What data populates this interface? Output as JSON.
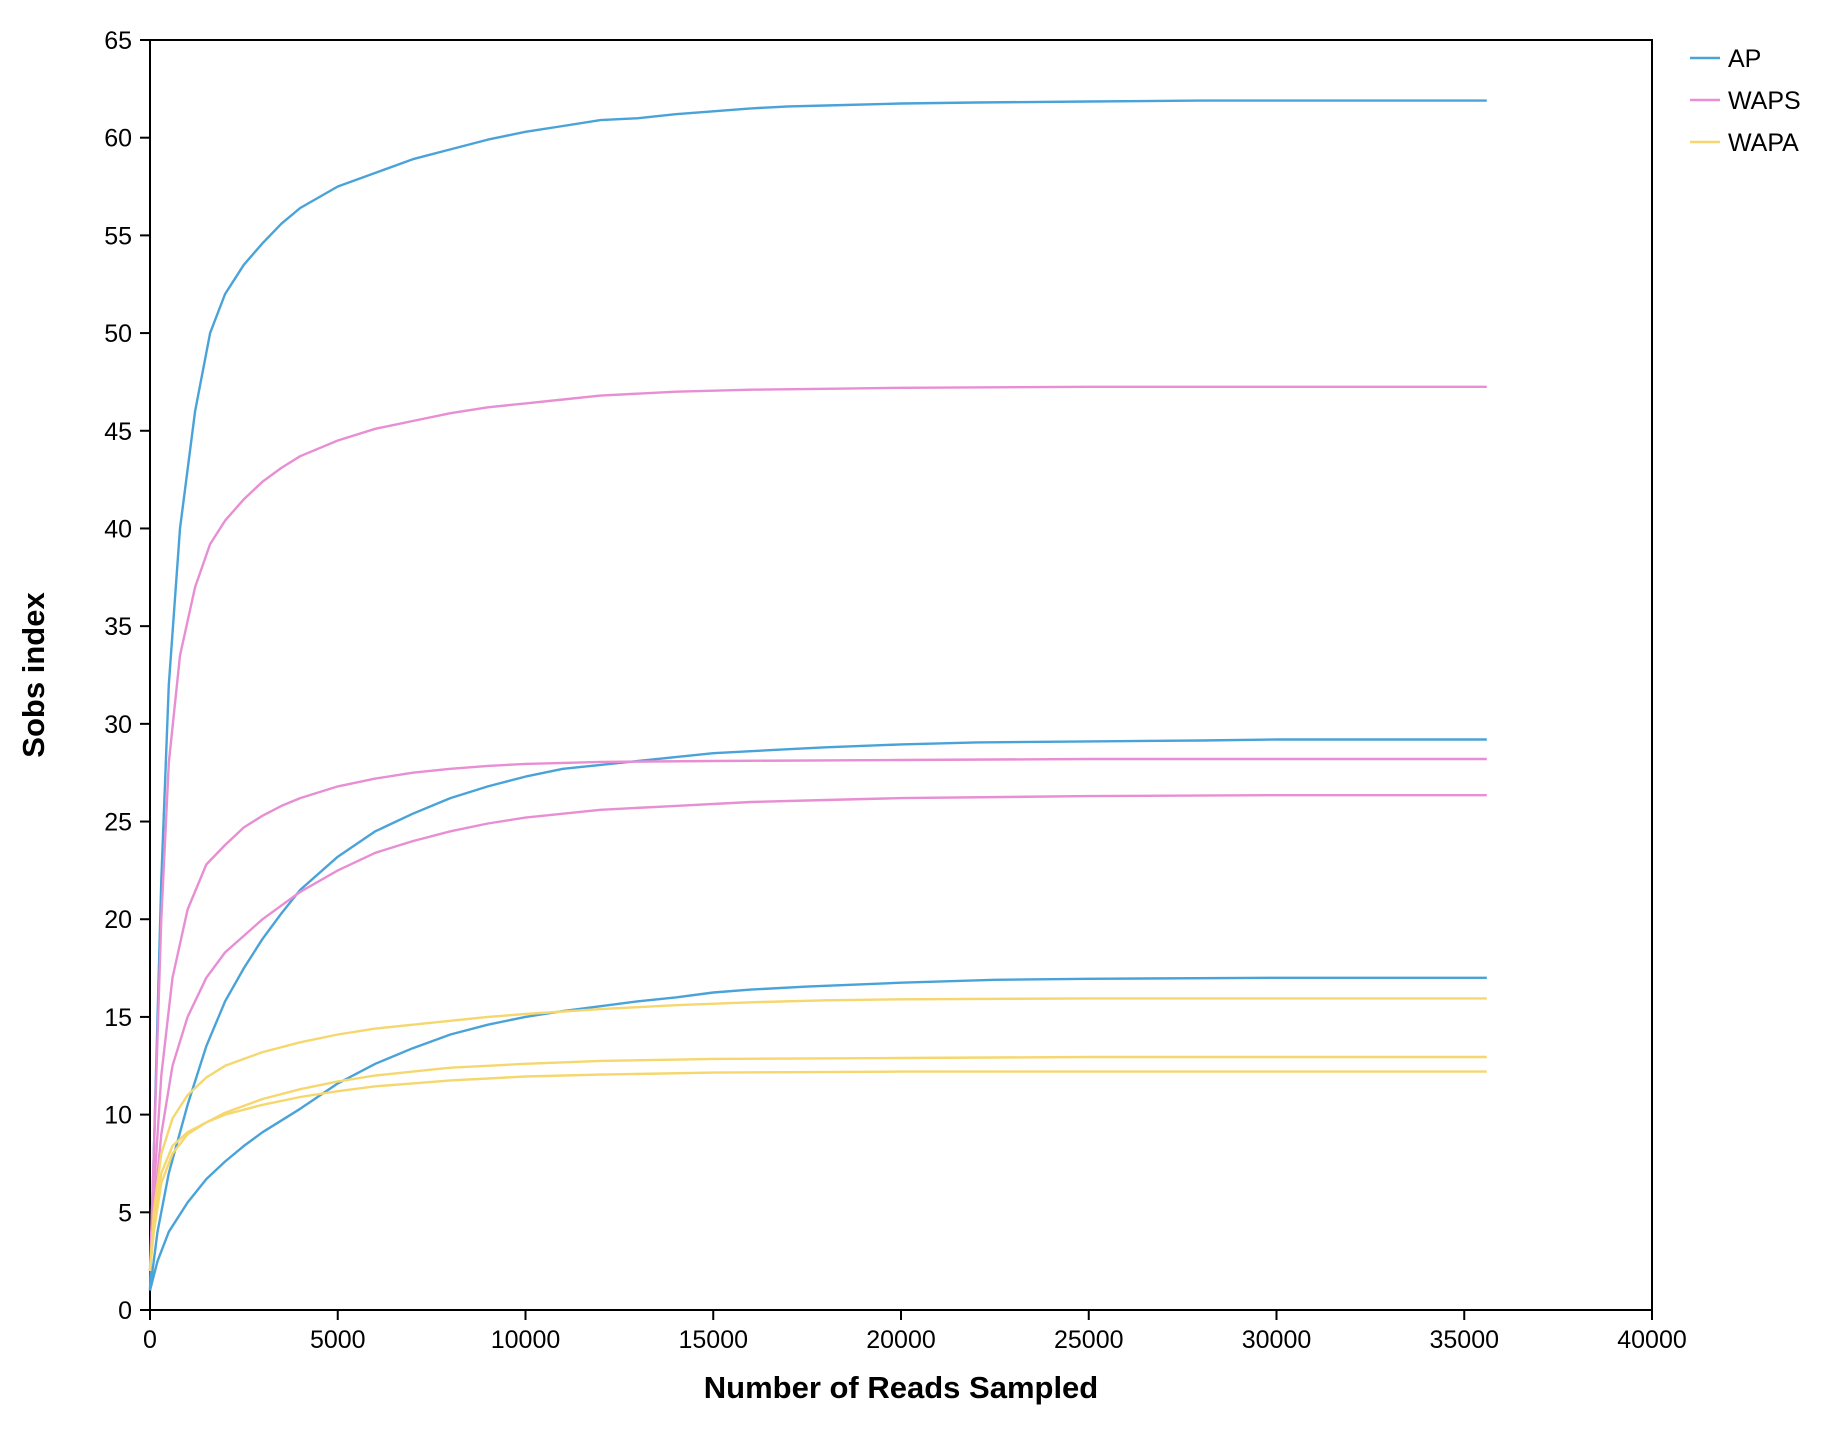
{
  "chart_data": {
    "type": "line",
    "title": "",
    "xlabel": "Number of Reads Sampled",
    "ylabel": "Sobs index",
    "xlim": [
      0,
      40000
    ],
    "ylim": [
      0,
      65
    ],
    "xticks": [
      0,
      5000,
      10000,
      15000,
      20000,
      25000,
      30000,
      35000,
      40000
    ],
    "yticks": [
      0,
      5,
      10,
      15,
      20,
      25,
      30,
      35,
      40,
      45,
      50,
      55,
      60,
      65
    ],
    "grid": false,
    "legend": {
      "position": "top-right",
      "entries": [
        {
          "label": "AP",
          "color": "#4aa3d8"
        },
        {
          "label": "WAPS",
          "color": "#e88ed3"
        },
        {
          "label": "WAPA",
          "color": "#f5d76e"
        }
      ]
    },
    "series": [
      {
        "group": "AP",
        "color": "#4aa3d8",
        "points": [
          [
            0,
            1
          ],
          [
            100,
            8
          ],
          [
            300,
            22
          ],
          [
            500,
            32
          ],
          [
            800,
            40
          ],
          [
            1200,
            46
          ],
          [
            1600,
            50
          ],
          [
            2000,
            52
          ],
          [
            2500,
            53.5
          ],
          [
            3000,
            54.6
          ],
          [
            3500,
            55.6
          ],
          [
            4000,
            56.4
          ],
          [
            5000,
            57.5
          ],
          [
            6000,
            58.2
          ],
          [
            7000,
            58.9
          ],
          [
            8000,
            59.4
          ],
          [
            9000,
            59.9
          ],
          [
            10000,
            60.3
          ],
          [
            11000,
            60.6
          ],
          [
            12000,
            60.9
          ],
          [
            13000,
            61.0
          ],
          [
            14000,
            61.2
          ],
          [
            15000,
            61.35
          ],
          [
            16000,
            61.5
          ],
          [
            17000,
            61.6
          ],
          [
            18000,
            61.65
          ],
          [
            20000,
            61.75
          ],
          [
            22000,
            61.8
          ],
          [
            25000,
            61.85
          ],
          [
            28000,
            61.9
          ],
          [
            31000,
            61.9
          ],
          [
            35600,
            61.9
          ]
        ]
      },
      {
        "group": "AP",
        "color": "#4aa3d8",
        "points": [
          [
            0,
            1
          ],
          [
            200,
            4
          ],
          [
            500,
            7
          ],
          [
            1000,
            10.5
          ],
          [
            1500,
            13.5
          ],
          [
            2000,
            15.8
          ],
          [
            2500,
            17.5
          ],
          [
            3000,
            19
          ],
          [
            3500,
            20.3
          ],
          [
            4000,
            21.5
          ],
          [
            5000,
            23.2
          ],
          [
            6000,
            24.5
          ],
          [
            7000,
            25.4
          ],
          [
            8000,
            26.2
          ],
          [
            9000,
            26.8
          ],
          [
            10000,
            27.3
          ],
          [
            11000,
            27.7
          ],
          [
            12000,
            27.9
          ],
          [
            13000,
            28.1
          ],
          [
            14000,
            28.3
          ],
          [
            15000,
            28.5
          ],
          [
            16000,
            28.6
          ],
          [
            17000,
            28.7
          ],
          [
            18000,
            28.8
          ],
          [
            20000,
            28.95
          ],
          [
            22000,
            29.05
          ],
          [
            25000,
            29.1
          ],
          [
            28000,
            29.15
          ],
          [
            30000,
            29.2
          ],
          [
            35600,
            29.2
          ]
        ]
      },
      {
        "group": "AP",
        "color": "#4aa3d8",
        "points": [
          [
            0,
            1
          ],
          [
            200,
            2.5
          ],
          [
            500,
            4
          ],
          [
            1000,
            5.5
          ],
          [
            1500,
            6.7
          ],
          [
            2000,
            7.6
          ],
          [
            2500,
            8.4
          ],
          [
            3000,
            9.1
          ],
          [
            4000,
            10.3
          ],
          [
            5000,
            11.6
          ],
          [
            6000,
            12.6
          ],
          [
            7000,
            13.4
          ],
          [
            8000,
            14.1
          ],
          [
            9000,
            14.6
          ],
          [
            10000,
            15.0
          ],
          [
            11000,
            15.3
          ],
          [
            12000,
            15.55
          ],
          [
            13000,
            15.8
          ],
          [
            14000,
            16.0
          ],
          [
            15000,
            16.25
          ],
          [
            16000,
            16.4
          ],
          [
            17500,
            16.55
          ],
          [
            20000,
            16.75
          ],
          [
            22500,
            16.9
          ],
          [
            25000,
            16.95
          ],
          [
            30000,
            17.0
          ],
          [
            35600,
            17.0
          ]
        ]
      },
      {
        "group": "WAPS",
        "color": "#e88ed3",
        "points": [
          [
            0,
            2
          ],
          [
            100,
            8
          ],
          [
            300,
            20
          ],
          [
            500,
            28
          ],
          [
            800,
            33.5
          ],
          [
            1200,
            37
          ],
          [
            1600,
            39.2
          ],
          [
            2000,
            40.4
          ],
          [
            2500,
            41.5
          ],
          [
            3000,
            42.4
          ],
          [
            3500,
            43.1
          ],
          [
            4000,
            43.7
          ],
          [
            5000,
            44.5
          ],
          [
            6000,
            45.1
          ],
          [
            7000,
            45.5
          ],
          [
            8000,
            45.9
          ],
          [
            9000,
            46.2
          ],
          [
            10000,
            46.4
          ],
          [
            11000,
            46.6
          ],
          [
            12000,
            46.8
          ],
          [
            14000,
            47.0
          ],
          [
            16000,
            47.1
          ],
          [
            18000,
            47.15
          ],
          [
            20000,
            47.2
          ],
          [
            25000,
            47.25
          ],
          [
            30000,
            47.25
          ],
          [
            35600,
            47.25
          ]
        ]
      },
      {
        "group": "WAPS",
        "color": "#e88ed3",
        "points": [
          [
            0,
            2
          ],
          [
            100,
            6
          ],
          [
            300,
            12
          ],
          [
            600,
            17
          ],
          [
            1000,
            20.5
          ],
          [
            1500,
            22.8
          ],
          [
            2000,
            23.8
          ],
          [
            2500,
            24.7
          ],
          [
            3000,
            25.3
          ],
          [
            3500,
            25.8
          ],
          [
            4000,
            26.2
          ],
          [
            5000,
            26.8
          ],
          [
            6000,
            27.2
          ],
          [
            7000,
            27.5
          ],
          [
            8000,
            27.7
          ],
          [
            9000,
            27.85
          ],
          [
            10000,
            27.95
          ],
          [
            12000,
            28.05
          ],
          [
            15000,
            28.1
          ],
          [
            20000,
            28.15
          ],
          [
            25000,
            28.2
          ],
          [
            35600,
            28.2
          ]
        ]
      },
      {
        "group": "WAPS",
        "color": "#e88ed3",
        "points": [
          [
            0,
            2
          ],
          [
            100,
            5
          ],
          [
            300,
            9
          ],
          [
            600,
            12.5
          ],
          [
            1000,
            15
          ],
          [
            1500,
            17
          ],
          [
            2000,
            18.3
          ],
          [
            3000,
            20
          ],
          [
            4000,
            21.4
          ],
          [
            5000,
            22.5
          ],
          [
            6000,
            23.4
          ],
          [
            7000,
            24
          ],
          [
            8000,
            24.5
          ],
          [
            9000,
            24.9
          ],
          [
            10000,
            25.2
          ],
          [
            11000,
            25.4
          ],
          [
            12000,
            25.6
          ],
          [
            14000,
            25.8
          ],
          [
            16000,
            26.0
          ],
          [
            18000,
            26.1
          ],
          [
            20000,
            26.2
          ],
          [
            25000,
            26.3
          ],
          [
            30000,
            26.35
          ],
          [
            35600,
            26.35
          ]
        ]
      },
      {
        "group": "WAPA",
        "color": "#f5d76e",
        "points": [
          [
            0,
            2
          ],
          [
            100,
            5
          ],
          [
            300,
            8
          ],
          [
            600,
            9.8
          ],
          [
            1000,
            11
          ],
          [
            1500,
            11.9
          ],
          [
            2000,
            12.5
          ],
          [
            3000,
            13.2
          ],
          [
            4000,
            13.7
          ],
          [
            5000,
            14.1
          ],
          [
            6000,
            14.4
          ],
          [
            7000,
            14.6
          ],
          [
            8000,
            14.8
          ],
          [
            9000,
            15.0
          ],
          [
            10000,
            15.15
          ],
          [
            12000,
            15.4
          ],
          [
            14000,
            15.6
          ],
          [
            16000,
            15.75
          ],
          [
            18000,
            15.85
          ],
          [
            20000,
            15.9
          ],
          [
            25000,
            15.95
          ],
          [
            35600,
            15.95
          ]
        ]
      },
      {
        "group": "WAPA",
        "color": "#f5d76e",
        "points": [
          [
            0,
            2
          ],
          [
            100,
            4
          ],
          [
            300,
            6.5
          ],
          [
            600,
            8
          ],
          [
            1000,
            9
          ],
          [
            1500,
            9.6
          ],
          [
            2000,
            10.1
          ],
          [
            3000,
            10.8
          ],
          [
            4000,
            11.3
          ],
          [
            5000,
            11.7
          ],
          [
            6000,
            12.0
          ],
          [
            7000,
            12.2
          ],
          [
            8000,
            12.4
          ],
          [
            9000,
            12.5
          ],
          [
            10000,
            12.6
          ],
          [
            12000,
            12.75
          ],
          [
            15000,
            12.85
          ],
          [
            20000,
            12.9
          ],
          [
            25000,
            12.95
          ],
          [
            35600,
            12.95
          ]
        ]
      },
      {
        "group": "WAPA",
        "color": "#f5d76e",
        "points": [
          [
            0,
            2
          ],
          [
            100,
            4.5
          ],
          [
            300,
            7
          ],
          [
            600,
            8.4
          ],
          [
            1000,
            9.1
          ],
          [
            1500,
            9.6
          ],
          [
            2000,
            10
          ],
          [
            3000,
            10.5
          ],
          [
            4000,
            10.9
          ],
          [
            5000,
            11.2
          ],
          [
            6000,
            11.45
          ],
          [
            7000,
            11.6
          ],
          [
            8000,
            11.75
          ],
          [
            9000,
            11.85
          ],
          [
            10000,
            11.95
          ],
          [
            12000,
            12.05
          ],
          [
            15000,
            12.15
          ],
          [
            20000,
            12.2
          ],
          [
            35600,
            12.2
          ]
        ]
      }
    ]
  }
}
